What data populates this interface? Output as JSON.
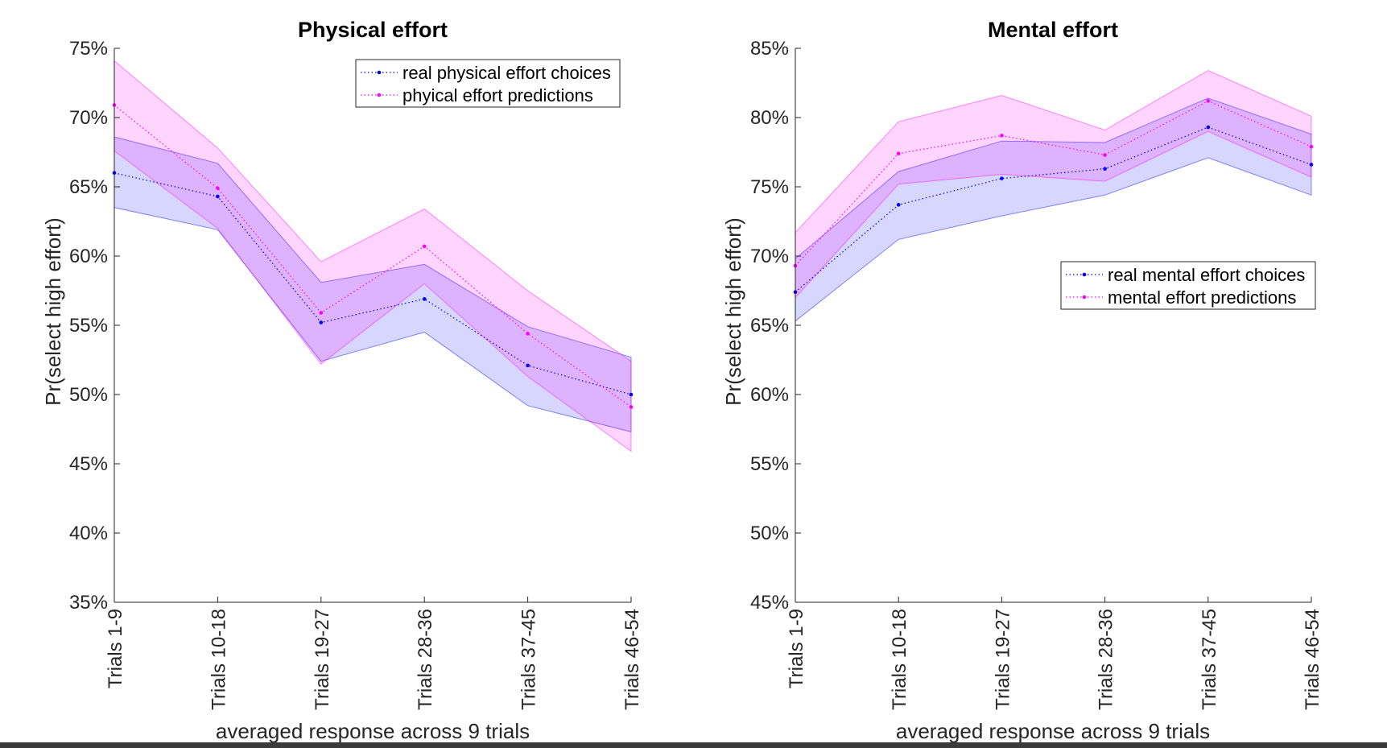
{
  "chart_data": [
    {
      "type": "line",
      "title": "Physical effort",
      "xlabel": "averaged response across 9 trials",
      "ylabel": "Pr(select high effort)",
      "categories": [
        "Trials 1-9",
        "Trials 10-18",
        "Trials 19-27",
        "Trials 28-36",
        "Trials 37-45",
        "Trials 46-54"
      ],
      "ylim": [
        35,
        75
      ],
      "yticks": [
        35,
        40,
        45,
        50,
        55,
        60,
        65,
        70,
        75
      ],
      "ytick_labels": [
        "35%",
        "40%",
        "45%",
        "50%",
        "55%",
        "60%",
        "65%",
        "70%",
        "75%"
      ],
      "grid": false,
      "legend_position": "top-right",
      "series": [
        {
          "name": "real physical effort choices",
          "color": "#0000ff",
          "values": [
            66.0,
            64.3,
            55.2,
            56.9,
            52.1,
            50.0
          ],
          "upper": [
            68.6,
            66.7,
            58.1,
            59.4,
            54.9,
            52.7
          ],
          "lower": [
            63.5,
            61.9,
            52.4,
            54.5,
            49.2,
            47.3
          ]
        },
        {
          "name": "phyical effort predictions",
          "color": "#ff00ff",
          "values": [
            70.9,
            64.9,
            55.9,
            60.7,
            54.4,
            49.1
          ],
          "upper": [
            74.1,
            67.8,
            59.6,
            63.4,
            57.5,
            52.4
          ],
          "lower": [
            67.6,
            62.0,
            52.2,
            58.0,
            51.3,
            45.9
          ]
        }
      ]
    },
    {
      "type": "line",
      "title": "Mental effort",
      "xlabel": "averaged response across 9 trials",
      "ylabel": "Pr(select high effort)",
      "categories": [
        "Trials 1-9",
        "Trials 10-18",
        "Trials 19-27",
        "Trials 28-36",
        "Trials 37-45",
        "Trials 46-54"
      ],
      "ylim": [
        45,
        85
      ],
      "yticks": [
        45,
        50,
        55,
        60,
        65,
        70,
        75,
        80,
        85
      ],
      "ytick_labels": [
        "45%",
        "50%",
        "55%",
        "60%",
        "65%",
        "70%",
        "75%",
        "80%",
        "85%"
      ],
      "grid": false,
      "legend_position": "middle-right",
      "series": [
        {
          "name": "real mental effort choices",
          "color": "#0000ff",
          "values": [
            67.4,
            73.7,
            75.6,
            76.3,
            79.3,
            76.6
          ],
          "upper": [
            69.8,
            76.1,
            78.3,
            78.2,
            81.4,
            78.8
          ],
          "lower": [
            65.3,
            71.2,
            72.9,
            74.4,
            77.1,
            74.4
          ]
        },
        {
          "name": "mental effort predictions",
          "color": "#ff00ff",
          "values": [
            69.3,
            77.4,
            78.7,
            77.3,
            81.2,
            77.9
          ],
          "upper": [
            71.7,
            79.7,
            81.6,
            79.1,
            83.4,
            80.1
          ],
          "lower": [
            67.0,
            75.2,
            75.9,
            75.4,
            79.0,
            75.7
          ]
        }
      ]
    }
  ]
}
